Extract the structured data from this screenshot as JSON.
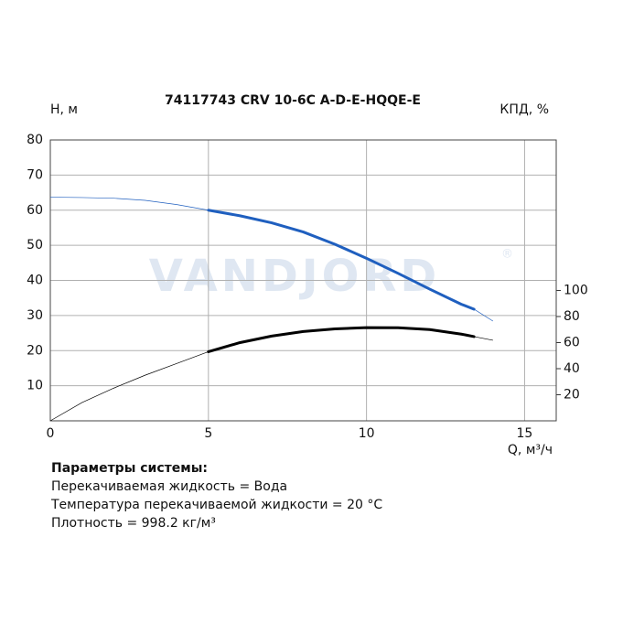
{
  "chart_data": {
    "type": "line",
    "title": "74117743 CRV 10-6C A-D-E-HQQE-E",
    "y_label": "H, м",
    "y2_label": "КПД, %",
    "x_label": "Q, м³/ч",
    "watermark": "VANDJORD",
    "watermark_mark": "®",
    "xlim": [
      0,
      16
    ],
    "xticks": [
      0,
      5,
      10,
      15
    ],
    "ylim": [
      0,
      80
    ],
    "yticks": [
      10,
      20,
      30,
      40,
      50,
      60,
      70,
      80
    ],
    "y2lim": [
      0,
      215.4
    ],
    "y2ticks": [
      20,
      40,
      60,
      80,
      100
    ],
    "grid": true,
    "duty_range": [
      5,
      13.4
    ],
    "series": [
      {
        "color": "#1f5fbf",
        "axis": "y",
        "x": [
          0,
          1,
          2,
          3,
          4,
          5,
          6,
          7,
          8,
          9,
          10,
          11,
          12,
          13,
          13.4,
          14
        ],
        "values": [
          63.7,
          63.6,
          63.4,
          62.8,
          61.6,
          60,
          58.4,
          56.4,
          53.8,
          50.3,
          46.3,
          42,
          37.5,
          33.2,
          31.8,
          28.4
        ]
      },
      {
        "color": "#000000",
        "axis": "y2",
        "x": [
          0,
          1,
          2,
          3,
          4,
          5,
          6,
          7,
          8,
          9,
          10,
          11,
          12,
          13,
          13.4,
          14
        ],
        "values": [
          0,
          14,
          25,
          35,
          44,
          53,
          60,
          65,
          68.5,
          70.5,
          71.5,
          71.4,
          70,
          66.5,
          64.6,
          61.8
        ]
      }
    ]
  },
  "params": {
    "title": "Параметры системы:",
    "lines": [
      "Перекачиваемая жидкость = Вода",
      "Температура перекачиваемой жидкости = 20 °C",
      "Плотность = 998.2 кг/м³"
    ]
  }
}
